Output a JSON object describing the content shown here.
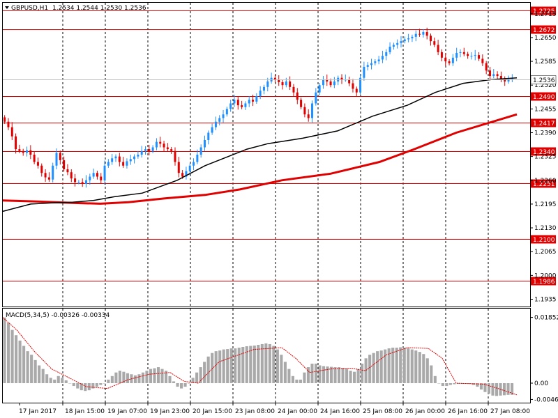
{
  "header": {
    "symbol_label": "GBPUSD,H1",
    "ohlc": "1.2534 1.2544 1.2530 1.2536"
  },
  "macd": {
    "label": "MACD(5,34,5) -0.00326 -0.00334"
  },
  "colors": {
    "bull": "#1e90ff",
    "bear": "#e00000",
    "level": "#e00000",
    "ma_fast": "#000000",
    "ma_slow": "#e00000",
    "macd_hist": "#a9a9a9",
    "signal": "#e00000",
    "grid": "#000000"
  },
  "chart_data": [
    {
      "type": "candlestick",
      "symbol": "GBPUSD",
      "timeframe": "H1",
      "ylim": [
        1.1915,
        1.2745
      ],
      "yticks": [
        "1.2715",
        "1.2650",
        "1.2585",
        "1.2520",
        "1.2455",
        "1.2390",
        "1.2325",
        "1.2260",
        "1.2195",
        "1.2130",
        "1.2065",
        "1.2000",
        "1.1935"
      ],
      "xticks": [
        "17 Jan 2017",
        "18 Jan 15:00",
        "19 Jan 07:00",
        "19 Jan 23:00",
        "20 Jan 15:00",
        "23 Jan 08:00",
        "24 Jan 00:00",
        "24 Jan 16:00",
        "25 Jan 08:00",
        "26 Jan 00:00",
        "26 Jan 16:00",
        "27 Jan 08:00"
      ],
      "levels": [
        "1.2725",
        "1.2672",
        "1.2490",
        "1.2417",
        "1.2340",
        "1.2251",
        "1.2100",
        "1.1986"
      ],
      "current_price": "1.2536",
      "close_series": [
        1.242,
        1.2405,
        1.238,
        1.2345,
        1.234,
        1.2335,
        1.2342,
        1.233,
        1.231,
        1.23,
        1.228,
        1.2268,
        1.2262,
        1.23,
        1.2335,
        1.2315,
        1.229,
        1.2282,
        1.2265,
        1.2255,
        1.2255,
        1.225,
        1.226,
        1.227,
        1.228,
        1.227,
        1.226,
        1.23,
        1.231,
        1.232,
        1.2325,
        1.231,
        1.23,
        1.2312,
        1.2318,
        1.2325,
        1.233,
        1.234,
        1.2345,
        1.234,
        1.235,
        1.2365,
        1.236,
        1.235,
        1.2345,
        1.234,
        1.231,
        1.228,
        1.227,
        1.2285,
        1.23,
        1.231,
        1.233,
        1.235,
        1.237,
        1.239,
        1.2405,
        1.242,
        1.243,
        1.244,
        1.2455,
        1.247,
        1.248,
        1.2465,
        1.246,
        1.247,
        1.248,
        1.2475,
        1.249,
        1.2505,
        1.2515,
        1.253,
        1.254,
        1.2535,
        1.2528,
        1.252,
        1.253,
        1.2515,
        1.25,
        1.248,
        1.246,
        1.244,
        1.243,
        1.247,
        1.25,
        1.252,
        1.2535,
        1.253,
        1.252,
        1.253,
        1.254,
        1.2535,
        1.2535,
        1.2525,
        1.251,
        1.25,
        1.254,
        1.257,
        1.2575,
        1.258,
        1.2585,
        1.259,
        1.26,
        1.261,
        1.2625,
        1.263,
        1.2635,
        1.264,
        1.2645,
        1.2648,
        1.2652,
        1.266,
        1.2658,
        1.2665,
        1.2655,
        1.264,
        1.263,
        1.261,
        1.2595,
        1.2585,
        1.258,
        1.2595,
        1.2608,
        1.261,
        1.2605,
        1.26,
        1.26,
        1.2602,
        1.2592,
        1.258,
        1.256,
        1.2545,
        1.255,
        1.2545,
        1.2538,
        1.253,
        1.2536,
        1.2536
      ],
      "ma_fast": [
        [
          1.2175,
          0
        ],
        [
          1.2195,
          40
        ],
        [
          1.2198,
          70
        ],
        [
          1.22,
          100
        ],
        [
          1.2205,
          130
        ],
        [
          1.2215,
          160
        ],
        [
          1.2225,
          200
        ],
        [
          1.226,
          250
        ],
        [
          1.23,
          290
        ],
        [
          1.2345,
          350
        ],
        [
          1.236,
          380
        ],
        [
          1.2375,
          430
        ],
        [
          1.2395,
          480
        ],
        [
          1.2435,
          530
        ],
        [
          1.2465,
          580
        ],
        [
          1.25,
          620
        ],
        [
          1.2525,
          660
        ],
        [
          1.2535,
          700
        ],
        [
          1.254,
          737
        ]
      ],
      "ma_slow": [
        [
          1.2205,
          0
        ],
        [
          1.2202,
          50
        ],
        [
          1.2198,
          100
        ],
        [
          1.2196,
          140
        ],
        [
          1.22,
          180
        ],
        [
          1.221,
          230
        ],
        [
          1.222,
          290
        ],
        [
          1.2235,
          340
        ],
        [
          1.226,
          400
        ],
        [
          1.2278,
          470
        ],
        [
          1.231,
          540
        ],
        [
          1.2345,
          590
        ],
        [
          1.239,
          650
        ],
        [
          1.244,
          737
        ]
      ],
      "macd_ylim": [
        -0.0055,
        0.021
      ],
      "macd_yticks": [
        "0.01852",
        "0.00",
        "-0.0046"
      ],
      "macd_hist": [
        0.0185,
        0.017,
        0.015,
        0.0135,
        0.012,
        0.0105,
        0.009,
        0.008,
        0.0065,
        0.005,
        0.004,
        0.0025,
        0.0015,
        0.001,
        0.002,
        0.0015,
        0.0008,
        0.0,
        -0.0008,
        -0.0015,
        -0.002,
        -0.0022,
        -0.002,
        -0.0015,
        -0.001,
        -0.0005,
        0.0,
        0.001,
        0.002,
        0.003,
        0.0035,
        0.0032,
        0.0028,
        0.0025,
        0.0022,
        0.0025,
        0.003,
        0.0035,
        0.004,
        0.0042,
        0.0045,
        0.004,
        0.0035,
        0.002,
        0.0005,
        -0.001,
        -0.0015,
        -0.001,
        0.0,
        0.0015,
        0.003,
        0.0045,
        0.006,
        0.0075,
        0.0085,
        0.009,
        0.0092,
        0.0095,
        0.0096,
        0.0098,
        0.0098,
        0.01,
        0.0102,
        0.0104,
        0.0105,
        0.0106,
        0.0108,
        0.011,
        0.0112,
        0.011,
        0.0105,
        0.0095,
        0.008,
        0.006,
        0.004,
        0.002,
        0.001,
        0.001,
        0.003,
        0.0045,
        0.0055,
        0.0055,
        0.005,
        0.0048,
        0.0047,
        0.0046,
        0.0045,
        0.0045,
        0.0043,
        0.004,
        0.0035,
        0.0032,
        0.004,
        0.0055,
        0.007,
        0.008,
        0.0085,
        0.009,
        0.0092,
        0.0095,
        0.0098,
        0.01,
        0.01,
        0.0101,
        0.01,
        0.0098,
        0.0095,
        0.0092,
        0.0088,
        0.0082,
        0.007,
        0.005,
        0.002,
        0.0,
        -0.0008,
        -0.0008,
        -0.0005,
        -0.0003,
        -0.0002,
        -0.0002,
        0.0,
        -0.0002,
        -0.0005,
        -0.001,
        -0.0018,
        -0.0025,
        -0.003,
        -0.0035,
        -0.0036,
        -0.0035,
        -0.0034,
        -0.0033,
        -0.0033
      ],
      "macd_signal": [
        [
          0.0185,
          0
        ],
        [
          0.015,
          20
        ],
        [
          0.009,
          45
        ],
        [
          0.004,
          70
        ],
        [
          0.0015,
          95
        ],
        [
          -0.001,
          120
        ],
        [
          -0.0015,
          150
        ],
        [
          0.001,
          180
        ],
        [
          0.0025,
          210
        ],
        [
          0.003,
          240
        ],
        [
          0.0005,
          260
        ],
        [
          0.0,
          280
        ],
        [
          0.006,
          310
        ],
        [
          0.0095,
          360
        ],
        [
          0.01,
          400
        ],
        [
          0.007,
          420
        ],
        [
          0.003,
          440
        ],
        [
          0.004,
          470
        ],
        [
          0.0042,
          500
        ],
        [
          0.0035,
          520
        ],
        [
          0.008,
          550
        ],
        [
          0.01,
          580
        ],
        [
          0.0098,
          610
        ],
        [
          0.007,
          630
        ],
        [
          0.0,
          650
        ],
        [
          -0.0003,
          690
        ],
        [
          -0.0015,
          710
        ],
        [
          -0.0033,
          737
        ]
      ]
    }
  ]
}
